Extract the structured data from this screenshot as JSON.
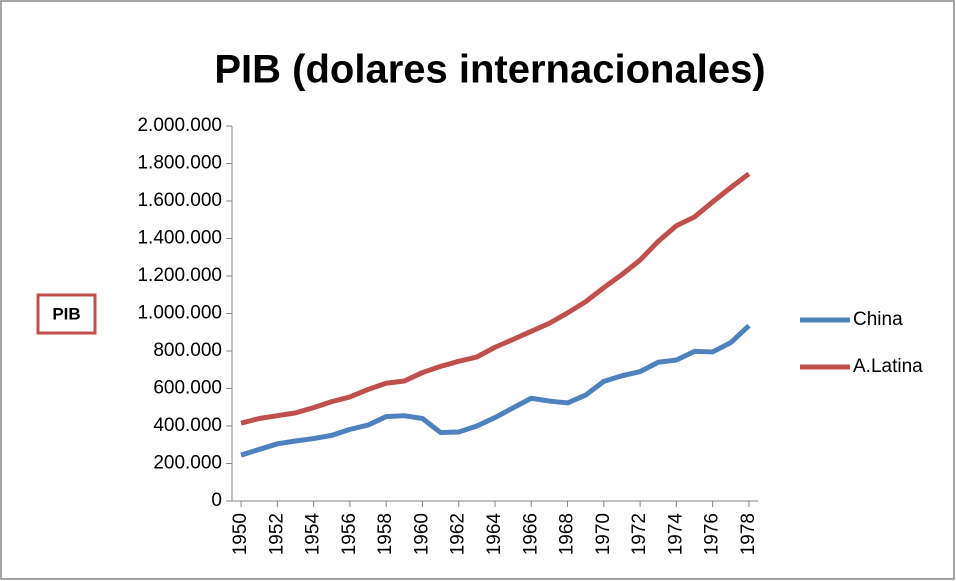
{
  "chart_data": {
    "type": "line",
    "title": "PIB (dolares internacionales)",
    "y_label": "PIB",
    "x": [
      1950,
      1951,
      1952,
      1953,
      1954,
      1955,
      1956,
      1957,
      1958,
      1959,
      1960,
      1961,
      1962,
      1963,
      1964,
      1965,
      1966,
      1967,
      1968,
      1969,
      1970,
      1971,
      1972,
      1973,
      1974,
      1975,
      1976,
      1977,
      1978
    ],
    "series": [
      {
        "name": "China",
        "color": "#4f81bd",
        "values": [
          245000,
          275000,
          305000,
          320000,
          333000,
          350000,
          382000,
          405000,
          450000,
          455000,
          440000,
          365000,
          368000,
          400000,
          445000,
          497000,
          548000,
          533000,
          523000,
          565000,
          638000,
          668000,
          690000,
          740000,
          752000,
          798000,
          795000,
          845000,
          935000
        ]
      },
      {
        "name": "A.Latina",
        "color": "#c0504d",
        "values": [
          415000,
          440000,
          455000,
          470000,
          498000,
          530000,
          555000,
          595000,
          628000,
          640000,
          685000,
          718000,
          745000,
          768000,
          820000,
          862000,
          905000,
          948000,
          1003000,
          1063000,
          1138000,
          1208000,
          1285000,
          1385000,
          1468000,
          1515000,
          1595000,
          1672000,
          1745000
        ]
      }
    ],
    "xlim": [
      1949.5,
      1978.5
    ],
    "xticks": [
      1950,
      1952,
      1954,
      1956,
      1958,
      1960,
      1962,
      1964,
      1966,
      1968,
      1970,
      1972,
      1974,
      1976,
      1978
    ],
    "ylim": [
      0,
      2000000
    ],
    "yticks": [
      0,
      {
        "value": 200000,
        "label": "200.000"
      },
      {
        "value": 400000,
        "label": "400.000"
      },
      {
        "value": 600000,
        "label": "600.000"
      },
      {
        "value": 800000,
        "label": "800.000"
      },
      {
        "value": 1000000,
        "label": "1.000.000"
      },
      {
        "value": 1200000,
        "label": "1.200.000"
      },
      {
        "value": 1400000,
        "label": "1.400.000"
      },
      {
        "value": 1600000,
        "label": "1.600.000"
      },
      {
        "value": 1800000,
        "label": "1.800.000"
      },
      {
        "value": 2000000,
        "label": "2.000.000"
      }
    ],
    "legend": "right",
    "grid": false
  }
}
